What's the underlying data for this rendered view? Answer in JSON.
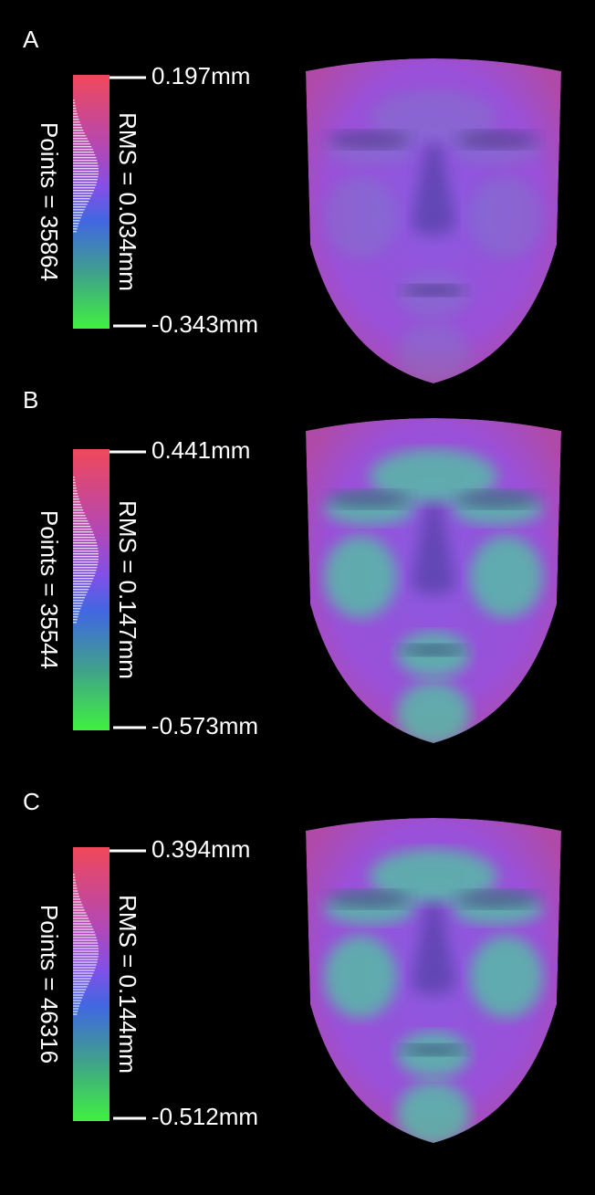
{
  "panels": [
    {
      "label": "A",
      "max": "0.197mm",
      "min": "-0.343mm",
      "rms": "RMS = 0.034mm",
      "points": "Points = 35864"
    },
    {
      "label": "B",
      "max": "0.441mm",
      "min": "-0.573mm",
      "rms": "RMS = 0.147mm",
      "points": "Points = 35544"
    },
    {
      "label": "C",
      "max": "0.394mm",
      "min": "-0.512mm",
      "rms": "RMS = 0.144mm",
      "points": "Points = 46316"
    }
  ]
}
